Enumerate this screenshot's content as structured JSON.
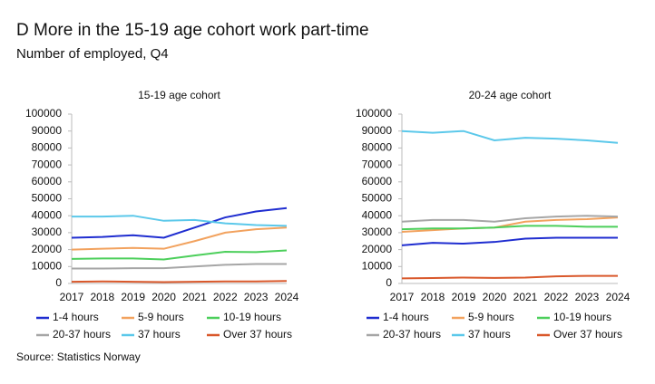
{
  "title": "D More in the 15-19 age cohort work part-time",
  "subtitle": "Number of employed, Q4",
  "source": "Source: Statistics Norway",
  "chart_data": [
    {
      "type": "line",
      "title": "15-19 age cohort",
      "categories": [
        "2017",
        "2018",
        "2019",
        "2020",
        "2021",
        "2022",
        "2023",
        "2024"
      ],
      "ylim": [
        0,
        100000
      ],
      "yticks": [
        0,
        10000,
        20000,
        30000,
        40000,
        50000,
        60000,
        70000,
        80000,
        90000,
        100000
      ],
      "grid": false,
      "series": [
        {
          "name": "1-4 hours",
          "color": "#1f2dd0",
          "values": [
            27000,
            27500,
            28500,
            27000,
            33000,
            39000,
            42500,
            44500
          ]
        },
        {
          "name": "5-9 hours",
          "color": "#f2a25e",
          "values": [
            20000,
            20500,
            21000,
            20500,
            25000,
            30000,
            32000,
            33000
          ]
        },
        {
          "name": "10-19 hours",
          "color": "#4ccf5b",
          "values": [
            14500,
            14800,
            14800,
            14200,
            16500,
            18700,
            18500,
            19500
          ]
        },
        {
          "name": "20-37 hours",
          "color": "#a6a6a6",
          "values": [
            8800,
            8800,
            9000,
            9000,
            10000,
            11000,
            11500,
            11500
          ]
        },
        {
          "name": "37 hours",
          "color": "#5bc8ea",
          "values": [
            39500,
            39500,
            40000,
            37000,
            37500,
            35500,
            34500,
            34000
          ]
        },
        {
          "name": "Over 37 hours",
          "color": "#d9582b",
          "values": [
            1000,
            1200,
            1000,
            800,
            1000,
            1200,
            1200,
            1500
          ]
        }
      ]
    },
    {
      "type": "line",
      "title": "20-24 age cohort",
      "categories": [
        "2017",
        "2018",
        "2019",
        "2020",
        "2021",
        "2022",
        "2023",
        "2024"
      ],
      "ylim": [
        0,
        100000
      ],
      "yticks": [
        0,
        10000,
        20000,
        30000,
        40000,
        50000,
        60000,
        70000,
        80000,
        90000,
        100000
      ],
      "grid": false,
      "series": [
        {
          "name": "1-4 hours",
          "color": "#1f2dd0",
          "values": [
            22500,
            24000,
            23500,
            24500,
            26500,
            27000,
            27000,
            27000
          ]
        },
        {
          "name": "5-9 hours",
          "color": "#f2a25e",
          "values": [
            30500,
            31500,
            32500,
            33000,
            36500,
            37500,
            38000,
            39000
          ]
        },
        {
          "name": "10-19 hours",
          "color": "#4ccf5b",
          "values": [
            32000,
            32500,
            32500,
            33000,
            34000,
            34000,
            33500,
            33500
          ]
        },
        {
          "name": "20-37 hours",
          "color": "#a6a6a6",
          "values": [
            36500,
            37500,
            37500,
            36500,
            38500,
            39500,
            40000,
            39500
          ]
        },
        {
          "name": "37 hours",
          "color": "#5bc8ea",
          "values": [
            90000,
            89000,
            90000,
            84500,
            86000,
            85500,
            84500,
            83000
          ]
        },
        {
          "name": "Over 37 hours",
          "color": "#d9582b",
          "values": [
            3000,
            3200,
            3500,
            3300,
            3500,
            4200,
            4500,
            4500
          ]
        }
      ]
    }
  ]
}
